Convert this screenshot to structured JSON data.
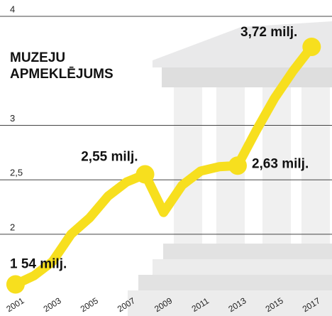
{
  "chart_data": {
    "type": "line",
    "title": "MUZEJU APMEKLĒJUMS",
    "x": [
      2001,
      2002,
      2003,
      2004,
      2005,
      2006,
      2007,
      2008,
      2009,
      2010,
      2011,
      2012,
      2013,
      2014,
      2015,
      2016,
      2017
    ],
    "series": [
      {
        "name": "Muzeju apmeklējums",
        "color": "#f7df1e",
        "values": [
          1.54,
          1.62,
          1.75,
          2.0,
          2.15,
          2.35,
          2.48,
          2.55,
          2.2,
          2.45,
          2.58,
          2.62,
          2.63,
          2.95,
          3.25,
          3.5,
          3.72
        ],
        "value_labels": [
          "1 54 milj.",
          null,
          null,
          null,
          null,
          null,
          null,
          "2,55 milj.",
          null,
          null,
          null,
          null,
          "2,63 milj.",
          null,
          null,
          null,
          "3,72 milj."
        ]
      }
    ],
    "xlim": [
      2000.16,
      2018.1
    ],
    "xticks": [
      2001,
      2003,
      2005,
      2007,
      2009,
      2011,
      2013,
      2015,
      2017
    ],
    "ylim": [
      1.25,
      4.15
    ],
    "yticks": [
      4,
      3,
      {
        "value": 2.5,
        "label": "2,5"
      },
      2
    ],
    "grid": true
  }
}
